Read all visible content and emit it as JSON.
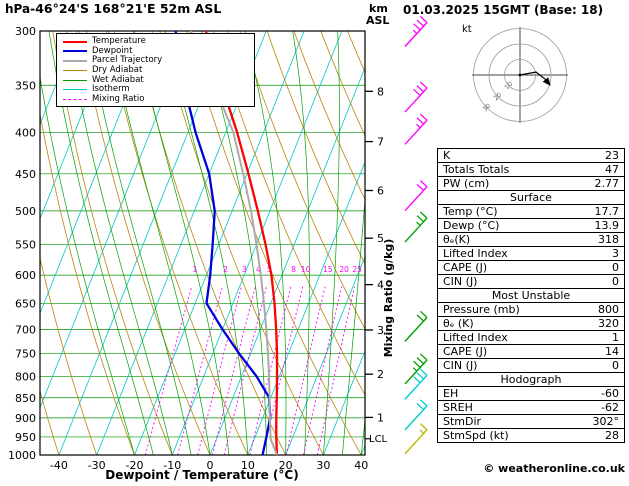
{
  "header": {
    "pressure_unit": "hPa",
    "station_title": "-46°24'S 168°21'E 52m ASL",
    "datetime": "01.03.2025 15GMT (Base: 18)",
    "km_label": "km",
    "asl_label": "ASL"
  },
  "axes": {
    "pressure_ticks": [
      300,
      350,
      400,
      450,
      500,
      550,
      600,
      650,
      700,
      750,
      800,
      850,
      900,
      950,
      1000
    ],
    "temp_ticks": [
      -40,
      -30,
      -20,
      -10,
      0,
      10,
      20,
      30,
      40
    ],
    "km_ticks": [
      1,
      2,
      3,
      4,
      5,
      6,
      7,
      8
    ],
    "xlabel": "Dewpoint / Temperature (°C)",
    "mixing_ratio_axis_label": "Mixing Ratio (g/kg)",
    "lcl_label": "LCL"
  },
  "legend": {
    "items": [
      {
        "label": "Temperature",
        "color": "#ff0000",
        "dash": "solid",
        "width": 2.5
      },
      {
        "label": "Dewpoint",
        "color": "#0000dd",
        "dash": "solid",
        "width": 2.5
      },
      {
        "label": "Parcel Trajectory",
        "color": "#aaaaaa",
        "dash": "solid",
        "width": 2
      },
      {
        "label": "Dry Adiabat",
        "color": "#b8860b",
        "dash": "solid",
        "width": 1.5
      },
      {
        "label": "Wet Adiabat",
        "color": "#00a000",
        "dash": "solid",
        "width": 1.5
      },
      {
        "label": "Isotherm",
        "color": "#00c8c8",
        "dash": "solid",
        "width": 1.5
      },
      {
        "label": "Mixing Ratio",
        "color": "#ff00ff",
        "dash": "dashed",
        "width": 1.5
      }
    ]
  },
  "hodograph": {
    "unit_label": "kt",
    "ring_labels": [
      10,
      20,
      30
    ]
  },
  "table": {
    "rows": [
      {
        "type": "row",
        "label": "K",
        "value": "23"
      },
      {
        "type": "row",
        "label": "Totals Totals",
        "value": "47"
      },
      {
        "type": "row",
        "label": "PW (cm)",
        "value": "2.77"
      },
      {
        "type": "header",
        "label": "Surface"
      },
      {
        "type": "row",
        "label": "Temp (°C)",
        "value": "17.7"
      },
      {
        "type": "row",
        "label": "Dewp (°C)",
        "value": "13.9"
      },
      {
        "type": "row",
        "label": "θₑ(K)",
        "value": "318"
      },
      {
        "type": "row",
        "label": "Lifted Index",
        "value": "3"
      },
      {
        "type": "row",
        "label": "CAPE (J)",
        "value": "0"
      },
      {
        "type": "row",
        "label": "CIN (J)",
        "value": "0"
      },
      {
        "type": "header",
        "label": "Most Unstable"
      },
      {
        "type": "row",
        "label": "Pressure (mb)",
        "value": "800"
      },
      {
        "type": "row",
        "label": "θₑ (K)",
        "value": "320"
      },
      {
        "type": "row",
        "label": "Lifted Index",
        "value": "1"
      },
      {
        "type": "row",
        "label": "CAPE (J)",
        "value": "14"
      },
      {
        "type": "row",
        "label": "CIN (J)",
        "value": "0"
      },
      {
        "type": "header",
        "label": "Hodograph"
      },
      {
        "type": "row",
        "label": "EH",
        "value": "-60"
      },
      {
        "type": "row",
        "label": "SREH",
        "value": "-62"
      },
      {
        "type": "row",
        "label": "StmDir",
        "value": "302°"
      },
      {
        "type": "row",
        "label": "StmSpd (kt)",
        "value": "28"
      }
    ]
  },
  "footer": {
    "copyright": "© weatheronline.co.uk"
  },
  "chart_data": {
    "type": "line",
    "subtype": "skew-t log-p sounding",
    "title": "-46°24'S 168°21'E 52m ASL  01.03.2025 15GMT (Base: 18)",
    "skew": 0.4,
    "x_axis": {
      "label": "Dewpoint / Temperature (°C)",
      "ticks": [
        -40,
        -30,
        -20,
        -10,
        0,
        10,
        20,
        30,
        40
      ]
    },
    "y_axis": {
      "label": "hPa",
      "scale": "log",
      "range": [
        300,
        1000
      ],
      "ticks": [
        300,
        350,
        400,
        450,
        500,
        550,
        600,
        650,
        700,
        750,
        800,
        850,
        900,
        950,
        1000
      ]
    },
    "series": [
      {
        "name": "Temperature",
        "color": "#ff0000",
        "width": 2.3,
        "points": [
          [
            1000,
            17.7
          ],
          [
            950,
            15.6
          ],
          [
            900,
            13.6
          ],
          [
            850,
            11.6
          ],
          [
            800,
            9.4
          ],
          [
            750,
            7.0
          ],
          [
            700,
            4.2
          ],
          [
            650,
            1.0
          ],
          [
            600,
            -2.8
          ],
          [
            550,
            -7.6
          ],
          [
            500,
            -13.2
          ],
          [
            450,
            -19.6
          ],
          [
            400,
            -27.0
          ],
          [
            350,
            -36.0
          ],
          [
            300,
            -46.0
          ]
        ]
      },
      {
        "name": "Dewpoint",
        "color": "#0000dd",
        "width": 2.3,
        "points": [
          [
            1000,
            13.9
          ],
          [
            950,
            13.0
          ],
          [
            900,
            12.0
          ],
          [
            850,
            9.6
          ],
          [
            800,
            4.0
          ],
          [
            750,
            -3.0
          ],
          [
            700,
            -10.0
          ],
          [
            650,
            -17.0
          ],
          [
            600,
            -19.0
          ],
          [
            550,
            -21.6
          ],
          [
            500,
            -24.6
          ],
          [
            450,
            -30.0
          ],
          [
            400,
            -38.0
          ],
          [
            350,
            -46.0
          ],
          [
            300,
            -54.0
          ]
        ]
      },
      {
        "name": "Parcel Trajectory",
        "color": "#aaaaaa",
        "width": 2,
        "points": [
          [
            1000,
            17.7
          ],
          [
            955,
            14.3
          ],
          [
            900,
            11.9
          ],
          [
            850,
            9.7
          ],
          [
            800,
            7.3
          ],
          [
            750,
            4.6
          ],
          [
            700,
            1.6
          ],
          [
            650,
            -1.8
          ],
          [
            600,
            -5.6
          ],
          [
            550,
            -10.0
          ],
          [
            500,
            -15.0
          ],
          [
            450,
            -21.0
          ],
          [
            400,
            -28.0
          ],
          [
            350,
            -38.0
          ],
          [
            300,
            -50.0
          ]
        ]
      }
    ],
    "background": {
      "isotherm_step": 10,
      "isotherm_color": "#00c8c8",
      "dry_adiabat_color": "#b8860b",
      "wet_adiabat_color": "#00a000",
      "isobar_color": "#009000",
      "mixing_ratio_color": "#ff00ff",
      "mixing_ratio_values": [
        1,
        2,
        3,
        4,
        5,
        8,
        10,
        15,
        20,
        25
      ]
    },
    "lcl_pressure": 955,
    "wind_barbs": [
      {
        "p": 303,
        "color": "#ff00ff",
        "ticks": 3,
        "half": true
      },
      {
        "p": 365,
        "color": "#ff00ff",
        "ticks": 3,
        "half": false
      },
      {
        "p": 400,
        "color": "#ff00ff",
        "ticks": 2,
        "half": true
      },
      {
        "p": 483,
        "color": "#ff00ff",
        "ticks": 2,
        "half": false
      },
      {
        "p": 528,
        "color": "#00a000",
        "ticks": 2,
        "half": true
      },
      {
        "p": 700,
        "color": "#00a000",
        "ticks": 2,
        "half": false
      },
      {
        "p": 790,
        "color": "#00a000",
        "ticks": 3,
        "half": true
      },
      {
        "p": 825,
        "color": "#00cccc",
        "ticks": 3,
        "half": false
      },
      {
        "p": 900,
        "color": "#00cccc",
        "ticks": 2,
        "half": false
      },
      {
        "p": 963,
        "color": "#bbbb00",
        "ticks": 1,
        "half": true
      }
    ]
  }
}
